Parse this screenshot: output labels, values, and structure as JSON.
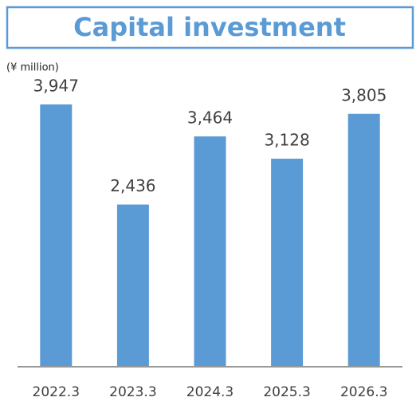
{
  "chart_data": {
    "type": "bar",
    "title": "Capital investment",
    "unit_label": "(¥ million)",
    "categories": [
      "2022.3",
      "2023.3",
      "2024.3",
      "2025.3",
      "2026.3"
    ],
    "values": [
      3947,
      2436,
      3464,
      3128,
      3805
    ],
    "value_labels": [
      "3,947",
      "2,436",
      "3,464",
      "3,128",
      "3,805"
    ],
    "color": "#5b9bd5",
    "ylim": [
      0,
      4500
    ]
  }
}
